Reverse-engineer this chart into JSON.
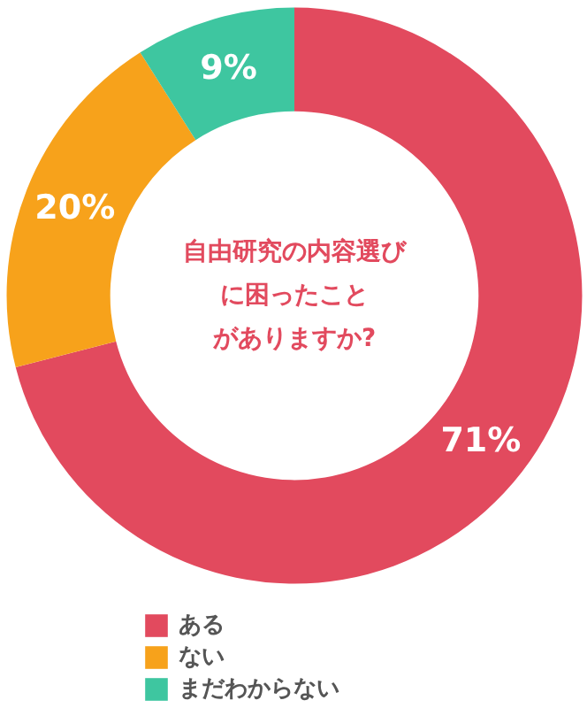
{
  "chart_data": {
    "type": "donut",
    "title": [
      "自由研究の内容選び",
      "に困ったこと",
      "がありますか?"
    ],
    "categories": [
      "ある",
      "ない",
      "まだわからない"
    ],
    "values": [
      71,
      20,
      9
    ],
    "colors": [
      "#e24a5e",
      "#f7a21b",
      "#3ec6a0"
    ],
    "value_labels": [
      "71%",
      "20%",
      "9%"
    ],
    "legend": "bottom"
  }
}
